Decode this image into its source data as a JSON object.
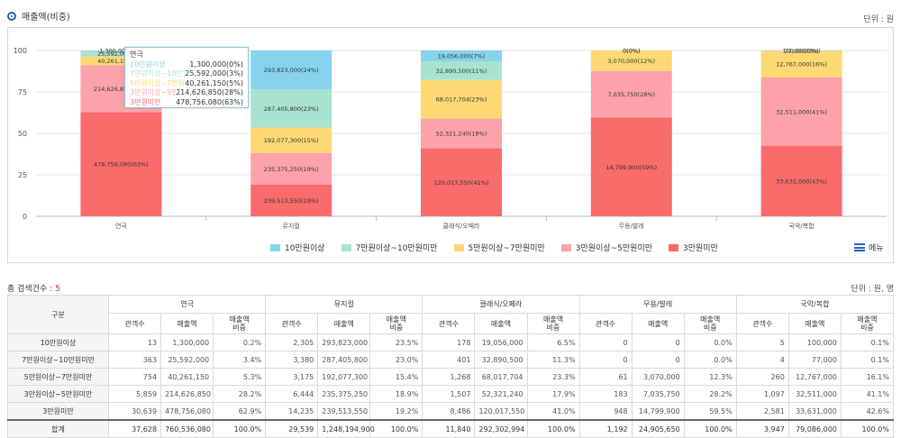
{
  "section": {
    "title": "매출액(비중)",
    "unit": "단위 : 원"
  },
  "chart_data": {
    "type": "bar",
    "stacked": true,
    "categories": [
      "연극",
      "뮤지컬",
      "클래식/오페라",
      "무용/발레",
      "국악/복합"
    ],
    "ylim": [
      0,
      100
    ],
    "yticks": [
      0,
      25,
      50,
      75,
      100
    ],
    "series": [
      {
        "name": "10만원이상",
        "color": "#86d3ee",
        "pct": [
          0.2,
          23.5,
          6.5,
          0.0,
          0.1
        ],
        "labels": [
          "1,300,000(0%)",
          "293,823,000(24%)",
          "19,056,000(7%)",
          "0(0%)",
          "100,000(0%)"
        ]
      },
      {
        "name": "7만원이상~10만원미만",
        "color": "#a8e3cd",
        "pct": [
          3.4,
          23.0,
          11.3,
          0.0,
          0.1
        ],
        "labels": [
          "25,592,000(3%)",
          "287,405,800(23%)",
          "32,890,500(11%)",
          "0(0%)",
          "77,000(0%)"
        ]
      },
      {
        "name": "5만원이상~7만원미만",
        "color": "#fdd873",
        "pct": [
          5.3,
          15.4,
          23.3,
          12.3,
          16.1
        ],
        "labels": [
          "40,261,150(5%)",
          "192,077,300(15%)",
          "68,017,704(23%)",
          "3,070,000(12%)",
          "12,767,000(16%)"
        ]
      },
      {
        "name": "3만원이상~5만원미만",
        "color": "#fca2aa",
        "pct": [
          28.2,
          18.9,
          17.9,
          28.2,
          41.1
        ],
        "labels": [
          "214,626,850(28%)",
          "235,375,250(19%)",
          "52,321,240(18%)",
          "7,035,750(28%)",
          "32,511,000(41%)"
        ]
      },
      {
        "name": "3만원미만",
        "color": "#fa6b6b",
        "pct": [
          62.9,
          19.2,
          41.0,
          59.5,
          42.6
        ],
        "labels": [
          "478,756,080(63%)",
          "239,513,550(19%)",
          "120,017,550(41%)",
          "14,799,900(59%)",
          "33,631,000(43%)"
        ]
      }
    ],
    "tooltip": {
      "title": "연극",
      "rows": [
        {
          "name": "10만원이상",
          "value": "1,300,000(0%)"
        },
        {
          "name": "7만원이상~10만원미만",
          "value": "25,592,000(3%)"
        },
        {
          "name": "5만원이상~7만원미만",
          "value": "40,261,150(5%)"
        },
        {
          "name": "3만원이상~5만원미만",
          "value": "214,626,850(28%)"
        },
        {
          "name": "3만원미만",
          "value": "478,756,080(63%)"
        }
      ]
    }
  },
  "legend_menu": "메뉴",
  "summary": {
    "count_label": "총 검색건수 : ",
    "count": "5",
    "unit": "단위 : 원, 명"
  },
  "table": {
    "corner": "구분",
    "groups": [
      "연극",
      "뮤지컬",
      "클래식/오페라",
      "무용/발레",
      "국악/복합"
    ],
    "subheads": [
      "관객수",
      "매출액",
      "매출액\n비중"
    ],
    "rows": [
      {
        "label": "10만원이상",
        "cells": [
          "13",
          "1,300,000",
          "0.2%",
          "2,305",
          "293,823,000",
          "23.5%",
          "178",
          "19,056,000",
          "6.5%",
          "0",
          "0",
          "0.0%",
          "5",
          "100,000",
          "0.1%"
        ]
      },
      {
        "label": "7만원이상~10만원미만",
        "cells": [
          "363",
          "25,592,000",
          "3.4%",
          "3,380",
          "287,405,800",
          "23.0%",
          "401",
          "32,890,500",
          "11.3%",
          "0",
          "0",
          "0.0%",
          "4",
          "77,000",
          "0.1%"
        ]
      },
      {
        "label": "5만원이상~7만원미만",
        "cells": [
          "754",
          "40,261,150",
          "5.3%",
          "3,175",
          "192,077,300",
          "15.4%",
          "1,268",
          "68,017,704",
          "23.3%",
          "61",
          "3,070,000",
          "12.3%",
          "260",
          "12,767,000",
          "16.1%"
        ]
      },
      {
        "label": "3만원이상~5만원미만",
        "cells": [
          "5,859",
          "214,626,850",
          "28.2%",
          "6,444",
          "235,375,250",
          "18.9%",
          "1,507",
          "52,321,240",
          "17.9%",
          "183",
          "7,035,750",
          "28.2%",
          "1,097",
          "32,511,000",
          "41.1%"
        ]
      },
      {
        "label": "3만원미만",
        "cells": [
          "30,639",
          "478,756,080",
          "62.9%",
          "14,235",
          "239,513,550",
          "19.2%",
          "8,486",
          "120,017,550",
          "41.0%",
          "948",
          "14,799,900",
          "59.5%",
          "2,581",
          "33,631,000",
          "42.6%"
        ]
      }
    ],
    "total": {
      "label": "합계",
      "cells": [
        "37,628",
        "760,536,080",
        "100.0%",
        "29,539",
        "1,248,194,900",
        "100.0%",
        "11,840",
        "292,302,994",
        "100.0%",
        "1,192",
        "24,905,650",
        "100.0%",
        "3,947",
        "79,086,000",
        "100.0%"
      ]
    }
  }
}
